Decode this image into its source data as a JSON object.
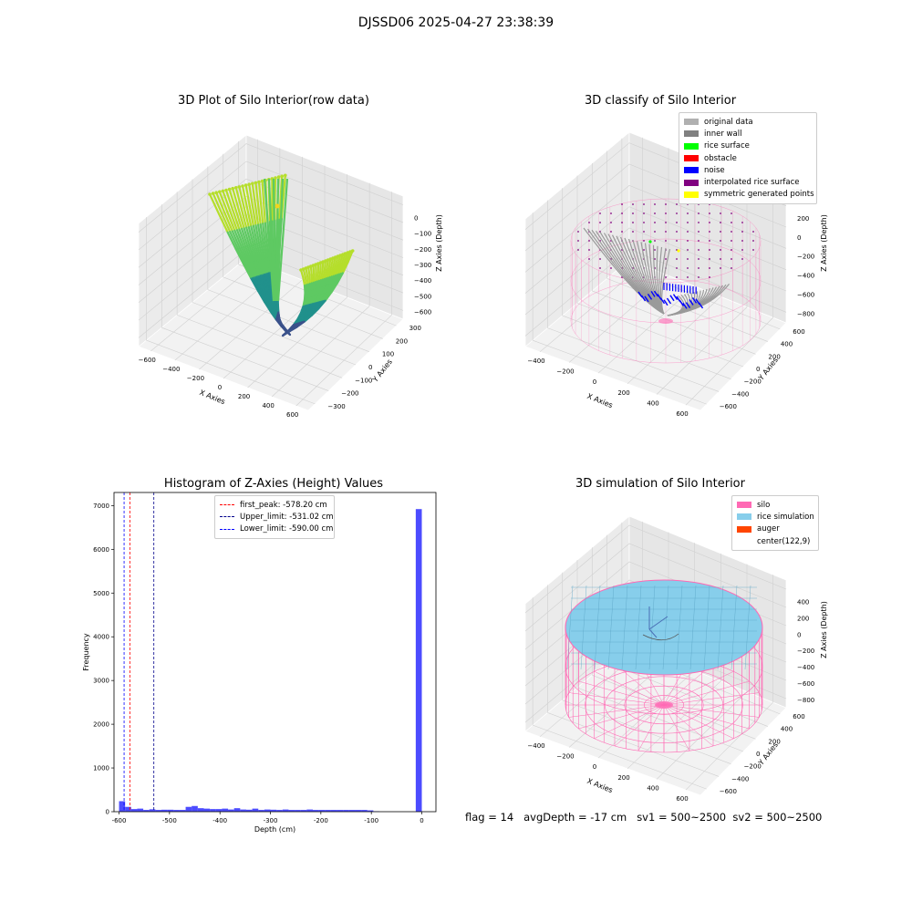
{
  "figure": {
    "suptitle": "DJSSD06 2025-04-27 23:38:39",
    "status_line": "flag = 14   avgDepth = -17 cm   sv1 = 500~2500  sv2 = 500~2500"
  },
  "panels": {
    "raw": {
      "title": "3D Plot of Silo Interior(row data)",
      "xlabel": "X Axies",
      "ylabel": "Y Axies",
      "zlabel": "Z Axies (Depth)",
      "xticks": [
        "−600",
        "−400",
        "−200",
        "0",
        "200",
        "400",
        "600"
      ],
      "yticks": [
        "300",
        "200",
        "100",
        "0",
        "−100",
        "−200",
        "−300"
      ],
      "zticks": [
        "0",
        "−100",
        "−200",
        "−300",
        "−400",
        "−500",
        "−600"
      ],
      "colormap": [
        "#440154",
        "#3b528b",
        "#21918c",
        "#5ec962",
        "#b5de2b"
      ]
    },
    "classify": {
      "title": "3D classify of Silo Interior",
      "xlabel": "X Axies",
      "ylabel": "Y Axies",
      "zlabel": "Z Axies (Depth)",
      "xticks": [
        "−400",
        "−200",
        "0",
        "200",
        "400",
        "600"
      ],
      "yticks": [
        "600",
        "400",
        "200",
        "0",
        "−200",
        "−400",
        "−600"
      ],
      "zticks": [
        "200",
        "0",
        "−200",
        "−400",
        "−600",
        "−800"
      ],
      "ztick_top_partial": "00",
      "legend": [
        {
          "label": "original data",
          "color": "#b0b0b0"
        },
        {
          "label": "inner wall",
          "color": "#808080"
        },
        {
          "label": "rice surface",
          "color": "#00ff00"
        },
        {
          "label": "obstacle",
          "color": "#ff0000"
        },
        {
          "label": "noise",
          "color": "#0000ff"
        },
        {
          "label": "interpolated rice surface",
          "color": "#800080"
        },
        {
          "label": "symmetric generated points",
          "color": "#ffff00"
        }
      ]
    },
    "histogram": {
      "title": "Histogram of Z-Axies (Height) Values",
      "legend": [
        {
          "label": "first_peak: -578.20 cm",
          "color": "#ff0000"
        },
        {
          "label": "Upper_limit: -531.02 cm",
          "color": "#00008b"
        },
        {
          "label": "Lower_limit: -590.00 cm",
          "color": "#0000ff"
        }
      ]
    },
    "simulation": {
      "title": "3D simulation of Silo Interior",
      "xlabel": "X Axies",
      "ylabel": "Y Axies",
      "zlabel": "Z Axies (Depth)",
      "xticks": [
        "−400",
        "−200",
        "0",
        "200",
        "400",
        "600"
      ],
      "yticks": [
        "600",
        "400",
        "200",
        "0",
        "−200",
        "−400",
        "−600"
      ],
      "zticks": [
        "400",
        "200",
        "0",
        "−200",
        "−400",
        "−600",
        "−800"
      ],
      "legend": [
        {
          "label": "silo",
          "color": "#ff69b4"
        },
        {
          "label": "rice simulation",
          "color": "#87ceeb"
        },
        {
          "label": "auger",
          "color": "#ff4500"
        },
        {
          "label": "center(122,9)",
          "color": ""
        }
      ]
    }
  },
  "chart_data": [
    {
      "type": "scatter3d",
      "title": "3D Plot of Silo Interior(row data)",
      "xlabel": "X Axies",
      "ylabel": "Y Axies",
      "zlabel": "Z Axies (Depth)",
      "xlim": [
        -600,
        600
      ],
      "ylim": [
        -300,
        300
      ],
      "zlim": [
        -600,
        0
      ],
      "grid": true
    },
    {
      "type": "scatter3d",
      "title": "3D classify of Silo Interior",
      "xlabel": "X Axies",
      "ylabel": "Y Axies",
      "zlabel": "Z Axies (Depth)",
      "xlim": [
        -400,
        600
      ],
      "ylim": [
        -600,
        600
      ],
      "zlim": [
        -800,
        200
      ],
      "series": [
        {
          "name": "original data"
        },
        {
          "name": "inner wall"
        },
        {
          "name": "rice surface"
        },
        {
          "name": "obstacle"
        },
        {
          "name": "noise"
        },
        {
          "name": "interpolated rice surface"
        },
        {
          "name": "symmetric generated points"
        }
      ],
      "legend_position": "upper right",
      "grid": true
    },
    {
      "type": "bar",
      "title": "Histogram of Z-Axies (Height) Values",
      "xlabel": "Depth (cm)",
      "ylabel": "Frequency",
      "xlim": [
        -610,
        28
      ],
      "ylim": [
        0,
        7300
      ],
      "xticks": [
        -600,
        -500,
        -400,
        -300,
        -200,
        -100,
        0
      ],
      "yticks": [
        0,
        1000,
        2000,
        3000,
        4000,
        5000,
        6000,
        7000
      ],
      "bin_width": 12,
      "bars": [
        {
          "x": -594,
          "value": 240
        },
        {
          "x": -582,
          "value": 110
        },
        {
          "x": -570,
          "value": 60
        },
        {
          "x": -558,
          "value": 70
        },
        {
          "x": -546,
          "value": 40
        },
        {
          "x": -534,
          "value": 55
        },
        {
          "x": -522,
          "value": 40
        },
        {
          "x": -510,
          "value": 45
        },
        {
          "x": -498,
          "value": 45
        },
        {
          "x": -486,
          "value": 40
        },
        {
          "x": -474,
          "value": 40
        },
        {
          "x": -462,
          "value": 110
        },
        {
          "x": -450,
          "value": 130
        },
        {
          "x": -438,
          "value": 80
        },
        {
          "x": -426,
          "value": 70
        },
        {
          "x": -414,
          "value": 60
        },
        {
          "x": -402,
          "value": 60
        },
        {
          "x": -390,
          "value": 70
        },
        {
          "x": -378,
          "value": 50
        },
        {
          "x": -366,
          "value": 80
        },
        {
          "x": -354,
          "value": 50
        },
        {
          "x": -342,
          "value": 45
        },
        {
          "x": -330,
          "value": 70
        },
        {
          "x": -318,
          "value": 40
        },
        {
          "x": -306,
          "value": 50
        },
        {
          "x": -294,
          "value": 45
        },
        {
          "x": -282,
          "value": 40
        },
        {
          "x": -270,
          "value": 50
        },
        {
          "x": -258,
          "value": 40
        },
        {
          "x": -246,
          "value": 40
        },
        {
          "x": -234,
          "value": 40
        },
        {
          "x": -222,
          "value": 50
        },
        {
          "x": -210,
          "value": 40
        },
        {
          "x": -198,
          "value": 40
        },
        {
          "x": -186,
          "value": 40
        },
        {
          "x": -174,
          "value": 40
        },
        {
          "x": -162,
          "value": 40
        },
        {
          "x": -150,
          "value": 40
        },
        {
          "x": -138,
          "value": 40
        },
        {
          "x": -126,
          "value": 40
        },
        {
          "x": -114,
          "value": 40
        },
        {
          "x": -102,
          "value": 30
        },
        {
          "x": -90,
          "value": 10
        },
        {
          "x": -6,
          "value": 6920
        }
      ],
      "bar_color": "#0000ff",
      "vlines": [
        {
          "name": "first_peak: -578.20 cm",
          "x": -578.2,
          "color": "#ff0000"
        },
        {
          "name": "Upper_limit: -531.02 cm",
          "x": -531.02,
          "color": "#00008b"
        },
        {
          "name": "Lower_limit: -590.00 cm",
          "x": -590.0,
          "color": "#0000ff"
        }
      ],
      "legend_position": "upper center"
    },
    {
      "type": "surface3d",
      "title": "3D simulation of Silo Interior",
      "xlabel": "X Axies",
      "ylabel": "Y Axies",
      "zlabel": "Z Axies (Depth)",
      "xlim": [
        -400,
        600
      ],
      "ylim": [
        -600,
        600
      ],
      "zlim": [
        -800,
        400
      ],
      "series": [
        {
          "name": "silo"
        },
        {
          "name": "rice simulation"
        },
        {
          "name": "auger"
        },
        {
          "name": "center(122,9)"
        }
      ],
      "legend_position": "upper right",
      "grid": true
    }
  ]
}
